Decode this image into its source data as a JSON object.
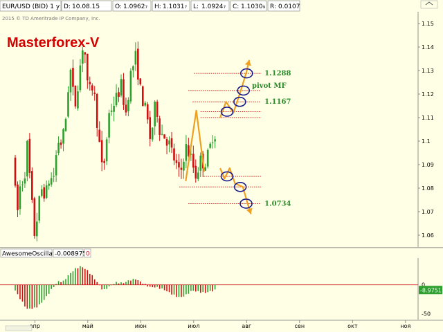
{
  "header": {
    "symbol": "EUR/USD (BID) 1 y D",
    "fields": [
      {
        "label": "D:",
        "value": "10.08.15"
      },
      {
        "label": "O:",
        "value": "1.0962₇"
      },
      {
        "label": "H:",
        "value": "1.1031₇"
      },
      {
        "label": "L:",
        "value": "1.0924₇"
      },
      {
        "label": "C:",
        "value": "1.1030₉"
      },
      {
        "label": "R:",
        "value": "0.0107"
      }
    ],
    "copyright": "2015 © TD Ameritrade IP Company, Inc."
  },
  "brand": "Masterforex-V",
  "colors": {
    "background": "#ffffe6",
    "up": "#2fa02f",
    "down": "#d01010",
    "level": "#d01010",
    "path": "#f0a020",
    "circle": "#1a1a8c",
    "level_label": "#2a8a2a"
  },
  "chart_data": [
    {
      "type": "candlestick",
      "title": "",
      "ylim": [
        1.055,
        1.155
      ],
      "yticks": [
        "1.15",
        "1.14",
        "1.13",
        "1.12",
        "1.11",
        "1.1",
        "1.09",
        "1.08",
        "1.07",
        "1.06"
      ],
      "xticks": [
        "апр",
        "май",
        "июн",
        "июл",
        "авг",
        "сен",
        "окт",
        "ноя"
      ],
      "anchors": [
        {
          "m": 0,
          "p": 1.094
        },
        {
          "m": 0.05,
          "p": 1.077
        },
        {
          "m": 0.1,
          "p": 1.069
        },
        {
          "m": 0.16,
          "p": 1.088
        },
        {
          "m": 0.2,
          "p": 1.079
        },
        {
          "m": 0.27,
          "p": 1.099
        },
        {
          "m": 0.33,
          "p": 1.082
        },
        {
          "m": 0.38,
          "p": 1.068
        },
        {
          "m": 0.42,
          "p": 1.058
        },
        {
          "m": 0.47,
          "p": 1.071
        },
        {
          "m": 0.55,
          "p": 1.08
        },
        {
          "m": 0.62,
          "p": 1.077
        },
        {
          "m": 0.7,
          "p": 1.085
        },
        {
          "m": 0.76,
          "p": 1.083
        },
        {
          "m": 0.85,
          "p": 1.1
        },
        {
          "m": 0.93,
          "p": 1.099
        },
        {
          "m": 1,
          "p": 1.11
        },
        {
          "m": 1.08,
          "p": 1.132
        },
        {
          "m": 1.17,
          "p": 1.114
        },
        {
          "m": 1.26,
          "p": 1.13
        },
        {
          "m": 1.34,
          "p": 1.144
        },
        {
          "m": 1.42,
          "p": 1.12
        },
        {
          "m": 1.52,
          "p": 1.124
        },
        {
          "m": 1.62,
          "p": 1.102
        },
        {
          "m": 1.7,
          "p": 1.085
        },
        {
          "m": 1.82,
          "p": 1.112
        },
        {
          "m": 1.95,
          "p": 1.118
        },
        {
          "m": 2.05,
          "p": 1.124
        },
        {
          "m": 2.13,
          "p": 1.111
        },
        {
          "m": 2.23,
          "p": 1.129
        },
        {
          "m": 2.32,
          "p": 1.136
        },
        {
          "m": 2.42,
          "p": 1.12
        },
        {
          "m": 2.52,
          "p": 1.112
        },
        {
          "m": 2.6,
          "p": 1.1
        },
        {
          "m": 2.7,
          "p": 1.117
        },
        {
          "m": 2.78,
          "p": 1.104
        },
        {
          "m": 2.87,
          "p": 1.102
        },
        {
          "m": 2.95,
          "p": 1.099
        },
        {
          "m": 3.02,
          "p": 1.094
        },
        {
          "m": 3.08,
          "p": 1.09
        },
        {
          "m": 3.16,
          "p": 1.085
        },
        {
          "m": 3.26,
          "p": 1.098
        },
        {
          "m": 3.36,
          "p": 1.093
        },
        {
          "m": 3.46,
          "p": 1.085
        },
        {
          "m": 3.54,
          "p": 1.092
        },
        {
          "m": 3.62,
          "p": 1.09
        },
        {
          "m": 3.7,
          "p": 1.095
        },
        {
          "m": 3.78,
          "p": 1.103
        }
      ],
      "levels": [
        {
          "price": 1.1288,
          "m_from": 3.38,
          "m_to": 4.12,
          "label": "1.1288"
        },
        {
          "price": 1.1215,
          "m_from": 3.27,
          "m_to": 4.12,
          "label": "pivot MF"
        },
        {
          "price": 1.1167,
          "m_from": 3.35,
          "m_to": 4.12,
          "label": "1.1167"
        },
        {
          "price": 1.1125,
          "m_from": 3.5,
          "m_to": 4.12,
          "label": ""
        },
        {
          "price": 1.11,
          "m_from": 3.5,
          "m_to": 4.12,
          "label": ""
        },
        {
          "price": 1.085,
          "m_from": 3.56,
          "m_to": 4.12,
          "label": ""
        },
        {
          "price": 1.0805,
          "m_from": 3.1,
          "m_to": 4.12,
          "label": ""
        },
        {
          "price": 1.0734,
          "m_from": 3.27,
          "m_to": 4.12,
          "label": "1.0734"
        }
      ],
      "path_up": [
        {
          "m": 3.22,
          "p": 1.083
        },
        {
          "m": 3.42,
          "p": 1.113
        },
        {
          "m": 3.57,
          "p": 1.087
        }
      ],
      "path_forecast_up": [
        {
          "m": 3.87,
          "p": 1.11
        },
        {
          "m": 3.98,
          "p": 1.1167
        },
        {
          "m": 4.12,
          "p": 1.112
        },
        {
          "m": 4.26,
          "p": 1.1215
        },
        {
          "m": 4.36,
          "p": 1.1288
        },
        {
          "m": 4.42,
          "p": 1.1345
        }
      ],
      "path_forecast_down": [
        {
          "m": 3.87,
          "p": 1.0885
        },
        {
          "m": 3.95,
          "p": 1.084
        },
        {
          "m": 4.05,
          "p": 1.0885
        },
        {
          "m": 4.15,
          "p": 1.082
        },
        {
          "m": 4.3,
          "p": 1.0805
        },
        {
          "m": 4.39,
          "p": 1.0734
        },
        {
          "m": 4.45,
          "p": 1.069
        }
      ],
      "circles": [
        {
          "m": 4.0,
          "p": 1.1125
        },
        {
          "m": 4.24,
          "p": 1.1167
        },
        {
          "m": 4.31,
          "p": 1.1215
        },
        {
          "m": 4.37,
          "p": 1.1288
        },
        {
          "m": 4.0,
          "p": 1.085
        },
        {
          "m": 4.25,
          "p": 1.0805
        },
        {
          "m": 4.36,
          "p": 1.0734
        }
      ]
    },
    {
      "type": "bar",
      "title": "AwesomeOscillator",
      "readout": "-0.0089751",
      "readout_tag": "0",
      "axis_labels": [
        "0",
        "-50"
      ],
      "last_value_label": "-8.9751",
      "ylim": [
        -60,
        45
      ],
      "anchors": [
        {
          "m": 0,
          "p": -10
        },
        {
          "m": 0.1,
          "p": -25
        },
        {
          "m": 0.22,
          "p": -42
        },
        {
          "m": 0.38,
          "p": -40
        },
        {
          "m": 0.48,
          "p": -33
        },
        {
          "m": 0.58,
          "p": -22
        },
        {
          "m": 0.7,
          "p": -6
        },
        {
          "m": 0.82,
          "p": 6
        },
        {
          "m": 0.9,
          "p": 5
        },
        {
          "m": 1.02,
          "p": 18
        },
        {
          "m": 1.14,
          "p": 28
        },
        {
          "m": 1.25,
          "p": 32
        },
        {
          "m": 1.36,
          "p": 25
        },
        {
          "m": 1.46,
          "p": 15
        },
        {
          "m": 1.55,
          "p": 4
        },
        {
          "m": 1.66,
          "p": -10
        },
        {
          "m": 1.78,
          "p": -3
        },
        {
          "m": 1.9,
          "p": 4
        },
        {
          "m": 2.04,
          "p": 3
        },
        {
          "m": 2.16,
          "p": 8
        },
        {
          "m": 2.28,
          "p": 10
        },
        {
          "m": 2.42,
          "p": 2
        },
        {
          "m": 2.54,
          "p": -4
        },
        {
          "m": 2.66,
          "p": -4
        },
        {
          "m": 2.8,
          "p": -8
        },
        {
          "m": 2.92,
          "p": -14
        },
        {
          "m": 3.04,
          "p": -20
        },
        {
          "m": 3.12,
          "p": -22
        },
        {
          "m": 3.22,
          "p": -18
        },
        {
          "m": 3.34,
          "p": -10
        },
        {
          "m": 3.46,
          "p": -12
        },
        {
          "m": 3.58,
          "p": -14
        },
        {
          "m": 3.7,
          "p": -11
        },
        {
          "m": 3.78,
          "p": -9
        }
      ]
    }
  ]
}
